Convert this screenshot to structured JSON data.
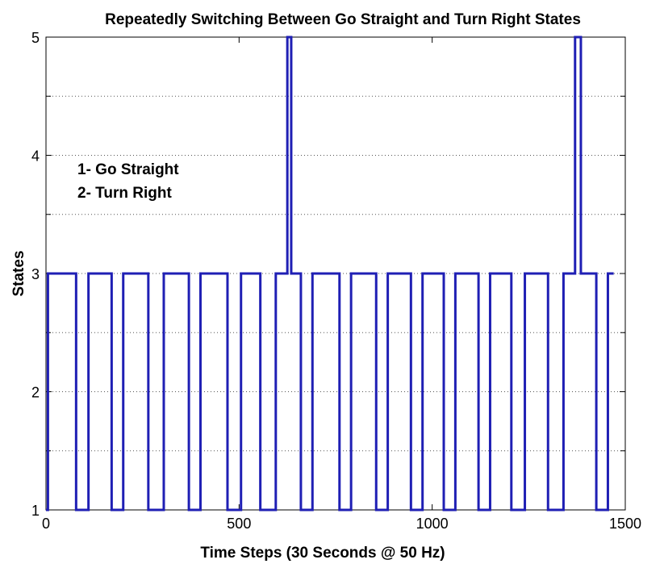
{
  "chart_data": {
    "type": "line",
    "title": "Repeatedly Switching Between Go Straight and Turn Right States",
    "xlabel": "Time Steps (30 Seconds @ 50 Hz)",
    "ylabel": "States",
    "xlim": [
      0,
      1500
    ],
    "ylim": [
      1,
      5
    ],
    "xticks": [
      0,
      500,
      1000,
      1500
    ],
    "yticks": [
      1,
      2,
      3,
      4,
      5
    ],
    "grid": "dotted, horizontal every 0.5",
    "line_color": "#1f1fb4",
    "annotations": [
      "1- Go Straight",
      "2- Turn Right"
    ],
    "series": [
      {
        "steps": [
          [
            0,
            1
          ],
          [
            5,
            3
          ],
          [
            78,
            1
          ],
          [
            110,
            3
          ],
          [
            170,
            1
          ],
          [
            200,
            3
          ],
          [
            265,
            1
          ],
          [
            305,
            3
          ],
          [
            370,
            1
          ],
          [
            400,
            3
          ],
          [
            470,
            1
          ],
          [
            505,
            3
          ],
          [
            555,
            1
          ],
          [
            595,
            3
          ],
          [
            625,
            5
          ],
          [
            635,
            3
          ],
          [
            660,
            1
          ],
          [
            690,
            3
          ],
          [
            760,
            1
          ],
          [
            790,
            3
          ],
          [
            855,
            1
          ],
          [
            885,
            3
          ],
          [
            945,
            1
          ],
          [
            975,
            3
          ],
          [
            1030,
            1
          ],
          [
            1060,
            3
          ],
          [
            1120,
            1
          ],
          [
            1150,
            3
          ],
          [
            1205,
            1
          ],
          [
            1240,
            3
          ],
          [
            1300,
            1
          ],
          [
            1340,
            3
          ],
          [
            1370,
            5
          ],
          [
            1385,
            3
          ],
          [
            1425,
            1
          ],
          [
            1455,
            3
          ],
          [
            1470,
            3
          ]
        ]
      }
    ]
  }
}
